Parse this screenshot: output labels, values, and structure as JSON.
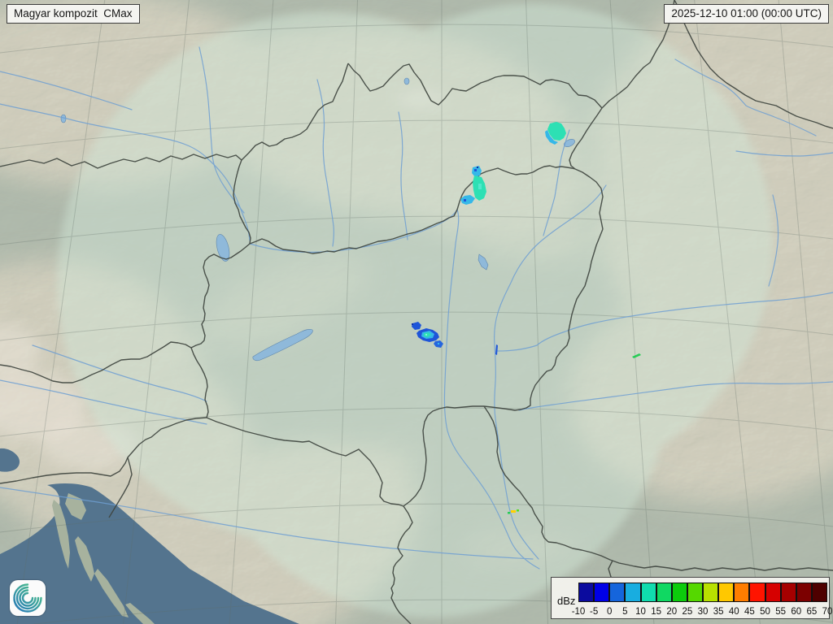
{
  "header": {
    "product_label": "Magyar kompozit  CMax",
    "timestamp_label": "2025-12-10 01:00 (00:00 UTC)"
  },
  "legend": {
    "unit": "dBz",
    "ticks": [
      "-10",
      "-5",
      "0",
      "5",
      "10",
      "15",
      "20",
      "25",
      "30",
      "35",
      "40",
      "45",
      "50",
      "55",
      "60",
      "65",
      "70"
    ],
    "colors": [
      "#0b0b9e",
      "#0000e6",
      "#1565dc",
      "#18ade0",
      "#10dcae",
      "#10d862",
      "#0ccc0c",
      "#55d800",
      "#b8e000",
      "#ffc800",
      "#ff7d00",
      "#ff1400",
      "#d60000",
      "#a60000",
      "#7c0000",
      "#4e0000"
    ]
  },
  "icons": {
    "logo": "spiral-weather-logo"
  },
  "palette": {
    "land_outside": "#a3b0a2",
    "coverage_light": "#d2e7d8",
    "sea": "#54748e",
    "island": "#a7b29e",
    "lake": "#8fb9da",
    "river": "#6f9fd2",
    "border": "#3f453f",
    "graticule": "#5f6b64",
    "mountain_tint": "#dbcbae",
    "echo_blue_dark": "#0b2fa8",
    "echo_blue": "#1e55d8",
    "echo_cyan": "#35b8e8",
    "echo_turquoise": "#2de0b4",
    "echo_green": "#27cc55",
    "echo_yellow": "#ffd000"
  }
}
